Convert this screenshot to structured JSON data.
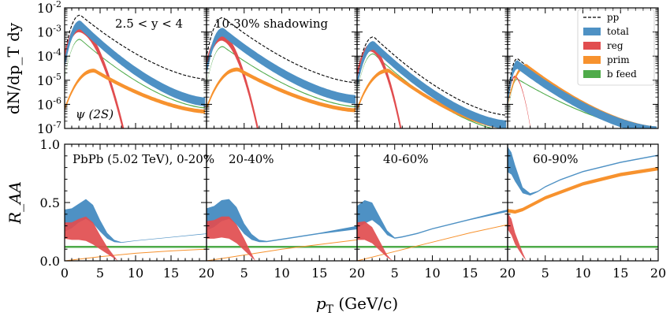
{
  "figure": {
    "xlabel": "p_T (GeV/c)",
    "ylabel_top": "dN/dp_T dy",
    "ylabel_bottom": "R_AA"
  },
  "chart_data": {
    "type": "line",
    "x_ticks": [
      0,
      5,
      10,
      15,
      20
    ],
    "x_tick_labels": [
      "0",
      "5",
      "10",
      "15",
      "20"
    ],
    "top_row": {
      "ylim_log": [
        -7,
        -2
      ],
      "y_tick_labels": [
        "10^-7",
        "10^-6",
        "10^-5",
        "10^-4",
        "10^-3",
        "10^-2"
      ],
      "panels": [
        {
          "annotation": "2.5 < y < 4",
          "annotation2": "ψ (2S)",
          "pp_peak": -2.3,
          "total_peak": -2.7,
          "reg_peak": -2.85,
          "bfeed_peak": -3.3,
          "prim_peak": -4.6,
          "pp_tail": -4.95,
          "total_tail": -5.9,
          "bfeed_tail": -6.15,
          "prim_tail": -6.3,
          "reg_end_pt": 8.5
        },
        {
          "annotation": "10-30% shadowing",
          "pp_peak": -2.4,
          "total_peak": -3.0,
          "reg_peak": -3.2,
          "bfeed_peak": -3.6,
          "prim_peak": -4.55,
          "pp_tail": -5.1,
          "total_tail": -5.8,
          "bfeed_tail": -6.1,
          "prim_tail": -6.25,
          "reg_end_pt": 7.0
        },
        {
          "annotation": "",
          "pp_peak": -3.2,
          "total_peak": -3.55,
          "reg_peak": -3.65,
          "bfeed_peak": -3.9,
          "prim_peak": -4.6,
          "pp_tail": -6.45,
          "total_tail": -6.85,
          "bfeed_tail": -7.1,
          "prim_tail": -6.95,
          "reg_end_pt": 6.0
        },
        {
          "annotation": "",
          "pp_peak": -4.1,
          "total_peak": -4.35,
          "reg_peak": -4.85,
          "bfeed_peak": -4.95,
          "prim_peak": -4.4,
          "pp_tail": -7.0,
          "total_tail": -7.1,
          "bfeed_tail": -7.1,
          "prim_tail": -7.0,
          "reg_end_pt": 3.2
        }
      ]
    },
    "bottom_row": {
      "ylim": [
        0.0,
        1.0
      ],
      "y_ticks": [
        0.0,
        0.5,
        1.0
      ],
      "y_tick_labels": [
        "0.0",
        "0.5",
        "1.0"
      ],
      "panels": [
        {
          "annotation": "PbPb (5.02 TeV), 0-20%",
          "total_lo": [
            [
              0,
              0.25
            ],
            [
              1,
              0.28
            ],
            [
              2,
              0.33
            ],
            [
              3,
              0.36
            ],
            [
              4,
              0.32
            ],
            [
              5,
              0.25
            ],
            [
              6,
              0.19
            ],
            [
              7,
              0.16
            ],
            [
              8,
              0.155
            ],
            [
              10,
              0.17
            ],
            [
              15,
              0.2
            ],
            [
              20,
              0.23
            ]
          ],
          "total_hi": [
            [
              0,
              0.44
            ],
            [
              1,
              0.45
            ],
            [
              2,
              0.49
            ],
            [
              3,
              0.53
            ],
            [
              4,
              0.48
            ],
            [
              5,
              0.35
            ],
            [
              6,
              0.24
            ],
            [
              7,
              0.18
            ],
            [
              8,
              0.16
            ],
            [
              10,
              0.175
            ],
            [
              15,
              0.205
            ],
            [
              20,
              0.235
            ]
          ],
          "reg_lo": [
            [
              0,
              0.19
            ],
            [
              1,
              0.18
            ],
            [
              2,
              0.18
            ],
            [
              3,
              0.17
            ],
            [
              4,
              0.14
            ],
            [
              5,
              0.1
            ],
            [
              6,
              0.06
            ],
            [
              7,
              0.02
            ],
            [
              7.5,
              0.0
            ]
          ],
          "reg_hi": [
            [
              0,
              0.33
            ],
            [
              1,
              0.33
            ],
            [
              2,
              0.36
            ],
            [
              3,
              0.38
            ],
            [
              4,
              0.33
            ],
            [
              5,
              0.22
            ],
            [
              6,
              0.12
            ],
            [
              7,
              0.04
            ],
            [
              7.5,
              0.0
            ]
          ],
          "prim": [
            [
              0,
              0.0
            ],
            [
              5,
              0.035
            ],
            [
              10,
              0.065
            ],
            [
              15,
              0.085
            ],
            [
              20,
              0.1
            ]
          ],
          "bfeed": 0.12
        },
        {
          "annotation": "20-40%",
          "total_lo": [
            [
              0,
              0.26
            ],
            [
              1,
              0.29
            ],
            [
              2,
              0.34
            ],
            [
              3,
              0.36
            ],
            [
              4,
              0.31
            ],
            [
              5,
              0.23
            ],
            [
              6,
              0.18
            ],
            [
              7,
              0.16
            ],
            [
              8,
              0.16
            ],
            [
              10,
              0.18
            ],
            [
              15,
              0.23
            ],
            [
              20,
              0.27
            ]
          ],
          "total_hi": [
            [
              0,
              0.45
            ],
            [
              1,
              0.47
            ],
            [
              2,
              0.52
            ],
            [
              3,
              0.53
            ],
            [
              4,
              0.46
            ],
            [
              5,
              0.32
            ],
            [
              6,
              0.23
            ],
            [
              7,
              0.18
            ],
            [
              8,
              0.17
            ],
            [
              10,
              0.19
            ],
            [
              15,
              0.24
            ],
            [
              20,
              0.3
            ]
          ],
          "reg_lo": [
            [
              0,
              0.19
            ],
            [
              1,
              0.19
            ],
            [
              2,
              0.2
            ],
            [
              3,
              0.19
            ],
            [
              4,
              0.15
            ],
            [
              5,
              0.09
            ],
            [
              6,
              0.03
            ],
            [
              6.5,
              0.0
            ]
          ],
          "reg_hi": [
            [
              0,
              0.34
            ],
            [
              1,
              0.35
            ],
            [
              2,
              0.38
            ],
            [
              3,
              0.38
            ],
            [
              4,
              0.31
            ],
            [
              5,
              0.19
            ],
            [
              6,
              0.06
            ],
            [
              6.5,
              0.0
            ]
          ],
          "prim": [
            [
              0,
              0.0
            ],
            [
              5,
              0.05
            ],
            [
              10,
              0.1
            ],
            [
              15,
              0.14
            ],
            [
              20,
              0.18
            ]
          ],
          "bfeed": 0.12
        },
        {
          "annotation": "40-60%",
          "total_lo": [
            [
              0,
              0.28
            ],
            [
              1,
              0.32
            ],
            [
              2,
              0.35
            ],
            [
              3,
              0.3
            ],
            [
              4,
              0.22
            ],
            [
              5,
              0.19
            ],
            [
              6,
              0.2
            ],
            [
              8,
              0.23
            ],
            [
              10,
              0.27
            ],
            [
              15,
              0.35
            ],
            [
              20,
              0.42
            ]
          ],
          "total_hi": [
            [
              0,
              0.47
            ],
            [
              1,
              0.52
            ],
            [
              2,
              0.5
            ],
            [
              3,
              0.38
            ],
            [
              4,
              0.26
            ],
            [
              5,
              0.2
            ],
            [
              6,
              0.21
            ],
            [
              8,
              0.24
            ],
            [
              10,
              0.28
            ],
            [
              15,
              0.36
            ],
            [
              20,
              0.44
            ]
          ],
          "reg_lo": [
            [
              0,
              0.18
            ],
            [
              1,
              0.18
            ],
            [
              2,
              0.15
            ],
            [
              3,
              0.09
            ],
            [
              4,
              0.03
            ],
            [
              4.7,
              0.0
            ]
          ],
          "reg_hi": [
            [
              0,
              0.33
            ],
            [
              1,
              0.34
            ],
            [
              2,
              0.29
            ],
            [
              3,
              0.17
            ],
            [
              4,
              0.05
            ],
            [
              4.7,
              0.0
            ]
          ],
          "prim": [
            [
              0,
              0.0
            ],
            [
              5,
              0.08
            ],
            [
              10,
              0.16
            ],
            [
              15,
              0.24
            ],
            [
              20,
              0.31
            ]
          ],
          "bfeed": 0.12
        },
        {
          "annotation": "60-90%",
          "total_lo": [
            [
              0,
              0.76
            ],
            [
              0.5,
              0.74
            ],
            [
              1,
              0.68
            ],
            [
              2,
              0.58
            ],
            [
              3,
              0.56
            ],
            [
              4,
              0.59
            ],
            [
              5,
              0.63
            ],
            [
              7,
              0.69
            ],
            [
              10,
              0.76
            ],
            [
              15,
              0.84
            ],
            [
              20,
              0.9
            ]
          ],
          "total_hi": [
            [
              0,
              0.98
            ],
            [
              0.5,
              0.93
            ],
            [
              1,
              0.82
            ],
            [
              2,
              0.63
            ],
            [
              3,
              0.58
            ],
            [
              4,
              0.6
            ],
            [
              5,
              0.64
            ],
            [
              7,
              0.7
            ],
            [
              10,
              0.77
            ],
            [
              15,
              0.85
            ],
            [
              20,
              0.91
            ]
          ],
          "reg_lo": [
            [
              0,
              0.27
            ],
            [
              0.5,
              0.22
            ],
            [
              1,
              0.14
            ],
            [
              2,
              0.04
            ],
            [
              2.5,
              0.0
            ]
          ],
          "reg_hi": [
            [
              0,
              0.41
            ],
            [
              0.5,
              0.36
            ],
            [
              1,
              0.24
            ],
            [
              2,
              0.07
            ],
            [
              2.5,
              0.0
            ]
          ],
          "prim": [
            [
              0,
              0.43
            ],
            [
              1,
              0.42
            ],
            [
              2,
              0.44
            ],
            [
              5,
              0.54
            ],
            [
              10,
              0.66
            ],
            [
              15,
              0.74
            ],
            [
              20,
              0.79
            ]
          ],
          "prim_band": true,
          "bfeed": 0.12
        }
      ]
    },
    "legend": {
      "placement": "top-right",
      "entries": [
        {
          "label": "pp",
          "style": "dashed-line",
          "color": "#000000"
        },
        {
          "label": "total",
          "style": "patch",
          "color": "#4e91c4"
        },
        {
          "label": "reg",
          "style": "patch",
          "color": "#e14d4f"
        },
        {
          "label": "prim",
          "style": "patch",
          "color": "#f7922e"
        },
        {
          "label": "b feed",
          "style": "patch",
          "color": "#4fab4a"
        }
      ]
    },
    "colors": {
      "pp": "#000000",
      "total": "#4e91c4",
      "reg": "#e14d4f",
      "prim": "#f7922e",
      "bfeed": "#4fab4a",
      "overlap": "#7a5a8a"
    }
  }
}
